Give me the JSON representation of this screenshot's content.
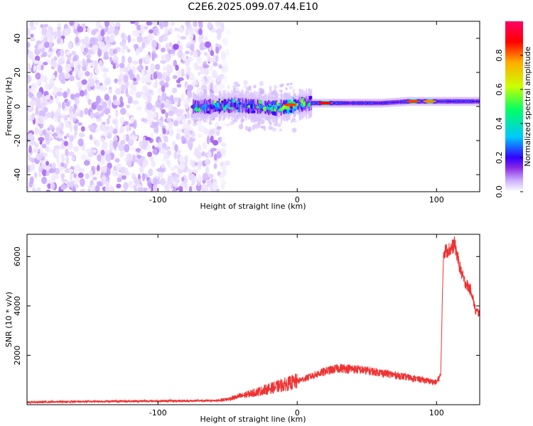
{
  "title": "C2E6.2025.099.07.44.E10",
  "chart_data": [
    {
      "type": "heatmap",
      "xlabel": "Height of straight line (km)",
      "ylabel": "Frequency (Hz)",
      "xlim": [
        -194,
        131
      ],
      "ylim": [
        -50,
        50
      ],
      "x_ticks": [
        -100,
        0,
        100
      ],
      "x_tick_labels": [
        "-100",
        "0",
        "100"
      ],
      "y_ticks": [
        -40,
        -20,
        0,
        20,
        40
      ],
      "y_tick_labels": [
        "-40",
        "-20",
        "0",
        "20",
        "40"
      ],
      "colorbar": {
        "label": "Normalized spectral amplitude",
        "range": [
          0,
          1
        ],
        "ticks": [
          0,
          0.2,
          0.4,
          0.6,
          0.8
        ],
        "tick_labels": [
          "0.0",
          "0.2",
          "0.4",
          "0.6",
          "0.8"
        ],
        "colors": [
          "#ffffff",
          "#c8a8ff",
          "#8a2be2",
          "#3300ff",
          "#00c8ff",
          "#00ff66",
          "#ccff00",
          "#ffaa00",
          "#ff0000",
          "#ff0066"
        ]
      },
      "regions": [
        {
          "x": [
            -194,
            -50
          ],
          "freq": [
            -50,
            50
          ],
          "amplitude": [
            0.02,
            0.2
          ],
          "pattern": "broadband noise"
        },
        {
          "x": [
            -50,
            0
          ],
          "freq": [
            -6,
            6
          ],
          "amplitude": [
            0.05,
            0.4
          ],
          "pattern": "scattered"
        },
        {
          "x": [
            0,
            131
          ],
          "freq": [
            -2,
            6
          ],
          "amplitude": [
            0.2,
            0.9
          ],
          "pattern": "narrow band near 0-3 Hz"
        }
      ],
      "trace": [
        {
          "x": -75,
          "f": 0
        },
        {
          "x": -60,
          "f": 0
        },
        {
          "x": -45,
          "f": 1
        },
        {
          "x": -30,
          "f": 0
        },
        {
          "x": -15,
          "f": -1
        },
        {
          "x": 0,
          "f": 1
        },
        {
          "x": 10,
          "f": 2
        },
        {
          "x": 20,
          "f": 2
        },
        {
          "x": 40,
          "f": 2
        },
        {
          "x": 60,
          "f": 2
        },
        {
          "x": 80,
          "f": 3
        },
        {
          "x": 100,
          "f": 3
        },
        {
          "x": 120,
          "f": 3
        },
        {
          "x": 131,
          "f": 3
        }
      ],
      "peaks": [
        {
          "x": -5,
          "f": 1,
          "amplitude": 0.85
        },
        {
          "x": 20,
          "f": 2,
          "amplitude": 0.9
        },
        {
          "x": 83,
          "f": 3,
          "amplitude": 0.85
        },
        {
          "x": 95,
          "f": 3,
          "amplitude": 0.8
        }
      ]
    },
    {
      "type": "line",
      "xlabel": "Height of straight line (km)",
      "ylabel": "SNR (10 * v/v)",
      "xlim": [
        -194,
        131
      ],
      "ylim": [
        0,
        6900
      ],
      "x_ticks": [
        -100,
        0,
        100
      ],
      "x_tick_labels": [
        "-100",
        "0",
        "100"
      ],
      "y_ticks": [
        2000,
        4000,
        6000
      ],
      "y_tick_labels": [
        "2000",
        "4000",
        "6000"
      ],
      "color": "#ee3333",
      "series": [
        {
          "x": [
            -194,
            -150,
            -100,
            -60,
            -50,
            -40,
            -30,
            -20,
            -10,
            0,
            10,
            20,
            30,
            40,
            50,
            60,
            70,
            80,
            90,
            100,
            103,
            105,
            110,
            113,
            117,
            120,
            125,
            128,
            131
          ],
          "values": [
            100,
            130,
            150,
            160,
            220,
            360,
            500,
            650,
            800,
            950,
            1150,
            1350,
            1480,
            1450,
            1380,
            1300,
            1200,
            1100,
            1000,
            900,
            1200,
            6200,
            6300,
            6500,
            5500,
            5000,
            4600,
            3800,
            3700
          ]
        }
      ]
    }
  ]
}
